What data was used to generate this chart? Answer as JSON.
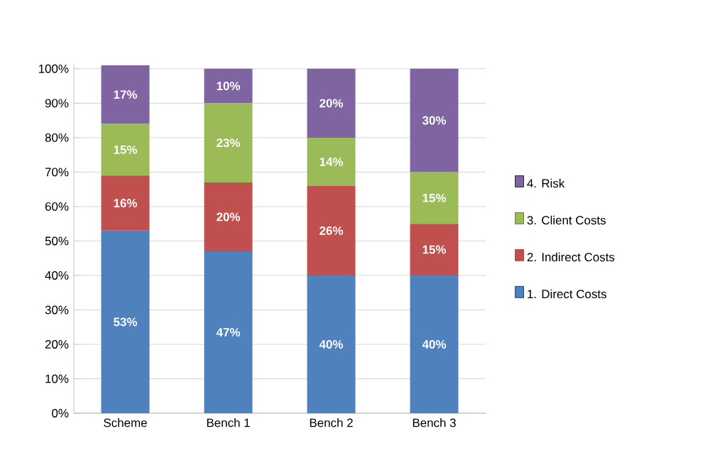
{
  "chart_data": {
    "type": "bar",
    "stacked": true,
    "categories": [
      "Scheme",
      "Bench 1",
      "Bench 2",
      "Bench 3"
    ],
    "series": [
      {
        "name": "1. Direct Costs",
        "color": "#4f81bd",
        "values": [
          53,
          47,
          40,
          40
        ],
        "value_labels": [
          "53%",
          "47%",
          "40%",
          "40%"
        ]
      },
      {
        "name": "2. Indirect Costs",
        "color": "#c0504d",
        "values": [
          16,
          20,
          26,
          15
        ],
        "value_labels": [
          "16%",
          "20%",
          "26%",
          "15%"
        ]
      },
      {
        "name": "3. Client Costs",
        "color": "#9bbb59",
        "values": [
          15,
          23,
          14,
          15
        ],
        "value_labels": [
          "15%",
          "23%",
          "14%",
          "15%"
        ]
      },
      {
        "name": "4. Risk",
        "color": "#8064a2",
        "values": [
          17,
          10,
          20,
          30
        ],
        "value_labels": [
          "17%",
          "10%",
          "20%",
          "30%"
        ]
      }
    ],
    "ylim": [
      0,
      101
    ],
    "yticks": [
      {
        "value": 0,
        "label": "0%"
      },
      {
        "value": 10,
        "label": "10%"
      },
      {
        "value": 20,
        "label": "20%"
      },
      {
        "value": 30,
        "label": "30%"
      },
      {
        "value": 40,
        "label": "40%"
      },
      {
        "value": 50,
        "label": "50%"
      },
      {
        "value": 60,
        "label": "60%"
      },
      {
        "value": 70,
        "label": "70%"
      },
      {
        "value": 80,
        "label": "80%"
      },
      {
        "value": 90,
        "label": "90%"
      },
      {
        "value": 100,
        "label": "100%"
      }
    ],
    "grid": "y",
    "legend": "right"
  }
}
